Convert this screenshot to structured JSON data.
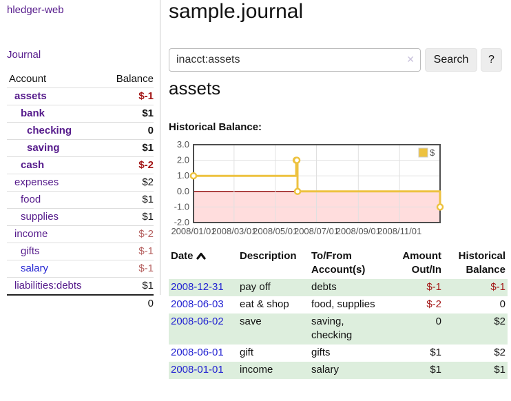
{
  "colors": {
    "purple": "#551a8b",
    "blue": "#2323d2",
    "negative": "#a31515",
    "negative_soft": "#b5605f",
    "row_green": "#ddeedd"
  },
  "app": {
    "brand": "hledger-web",
    "nav_journal": "Journal"
  },
  "sidebar": {
    "account_header": "Account",
    "balance_header": "Balance",
    "total": "0",
    "rows": [
      {
        "account": "assets",
        "balance": "$-1",
        "level": 1,
        "infilter": true,
        "neg": "strong"
      },
      {
        "account": "bank",
        "balance": "$1",
        "level": 2,
        "infilter": true
      },
      {
        "account": "checking",
        "balance": "0",
        "level": 3,
        "infilter": true
      },
      {
        "account": "saving",
        "balance": "$1",
        "level": 3,
        "infilter": true
      },
      {
        "account": "cash",
        "balance": "$-2",
        "level": 2,
        "infilter": true,
        "neg": "strong"
      },
      {
        "account": "expenses",
        "balance": "$2",
        "level": 1
      },
      {
        "account": "food",
        "balance": "$1",
        "level": 2
      },
      {
        "account": "supplies",
        "balance": "$1",
        "level": 2
      },
      {
        "account": "income",
        "balance": "$-2",
        "level": 1,
        "neg": "soft"
      },
      {
        "account": "gifts",
        "balance": "$-1",
        "level": 2,
        "neg": "soft"
      },
      {
        "account": "salary",
        "balance": "$-1",
        "level": 2,
        "neg": "soft",
        "blue": true
      },
      {
        "account": "liabilities:debts",
        "balance": "$1",
        "level": 1
      }
    ]
  },
  "main": {
    "title": "sample.journal",
    "search": {
      "value": "inacct:assets",
      "clear_icon": "✕",
      "button_label": "Search",
      "help_label": "?"
    },
    "account_heading": "assets",
    "chart_label": "Historical Balance:"
  },
  "chart_data": {
    "type": "line",
    "step": "left",
    "title": "Historical Balance",
    "series": [
      {
        "name": "$",
        "color": "#edc240",
        "points": [
          [
            "2008-01-01",
            1
          ],
          [
            "2008-06-01",
            2
          ],
          [
            "2008-06-02",
            2
          ],
          [
            "2008-06-03",
            0
          ],
          [
            "2008-12-31",
            -1
          ]
        ]
      }
    ],
    "ylim": [
      -2,
      3
    ],
    "yticks": [
      3,
      2,
      1,
      0,
      -1,
      -2
    ],
    "xlim": [
      "2008-01-01",
      "2008-12-31"
    ],
    "xticks": [
      "2008/01/01",
      "2008/03/01",
      "2008/05/01",
      "2008/07/01",
      "2008/09/01",
      "2008/11/01"
    ],
    "legend": {
      "label": "$",
      "position": "top-right"
    },
    "grid": true,
    "colors": {
      "grid": "#e0e0e0",
      "border": "#4d4d4d",
      "zero_line": "#8b0000",
      "negative_region": "#ffdddd",
      "text": "#545454"
    }
  },
  "register": {
    "headers": {
      "date": "Date",
      "description": "Description",
      "accounts": "To/From\nAccount(s)",
      "amount": "Amount\nOut/In",
      "balance": "Historical\nBalance"
    },
    "rows": [
      {
        "date": "2008-12-31",
        "description": "pay off",
        "accounts": "debts",
        "amount": "$-1",
        "amount_negative": true,
        "balance": "$-1",
        "balance_negative": true
      },
      {
        "date": "2008-06-03",
        "description": "eat & shop",
        "accounts": "food, supplies",
        "amount": "$-2",
        "amount_negative": true,
        "balance": "0"
      },
      {
        "date": "2008-06-02",
        "description": "save",
        "accounts": "saving,\nchecking",
        "amount": "0",
        "balance": "$2"
      },
      {
        "date": "2008-06-01",
        "description": "gift",
        "accounts": "gifts",
        "amount": "$1",
        "balance": "$2"
      },
      {
        "date": "2008-01-01",
        "description": "income",
        "accounts": "salary",
        "amount": "$1",
        "balance": "$1"
      }
    ]
  }
}
